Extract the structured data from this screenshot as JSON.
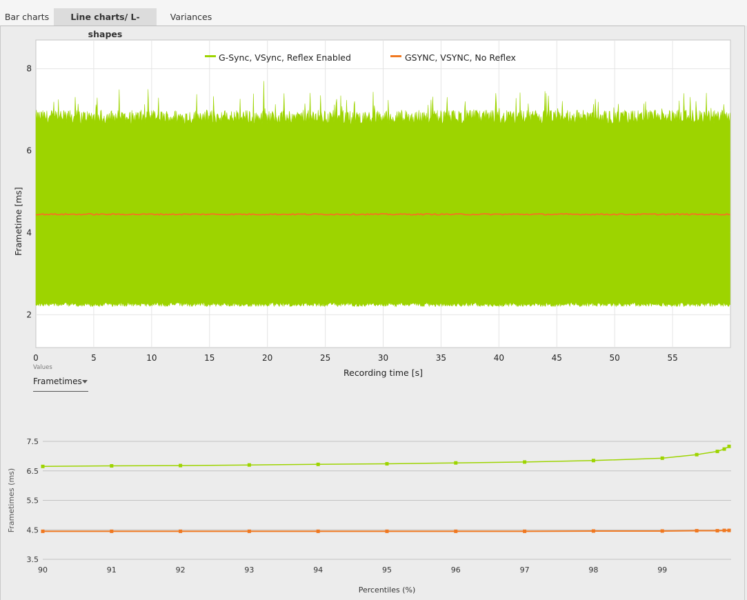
{
  "tabs": [
    {
      "label": "Bar charts"
    },
    {
      "label": "Line charts/ L-shapes"
    },
    {
      "label": "Variances"
    }
  ],
  "dropdown": {
    "label": "Values",
    "value": "Frametimes"
  },
  "colors": {
    "green": "#9dd400",
    "orange": "#f07820"
  },
  "chart_data": [
    {
      "type": "line",
      "title": "",
      "xlabel": "Recording time [s]",
      "ylabel": "Frametime [ms]",
      "xlim": [
        0,
        60
      ],
      "ylim": [
        1.2,
        8.7
      ],
      "xticks": [
        0,
        5,
        10,
        15,
        20,
        25,
        30,
        35,
        40,
        45,
        50,
        55
      ],
      "yticks": [
        2,
        4,
        6,
        8
      ],
      "grid": true,
      "legend": "top",
      "series": [
        {
          "name": "G-Sync, VSync, Reflex Enabled",
          "color": "#9dd400",
          "band_low": 2.3,
          "band_high": 6.75,
          "max": 7.7,
          "min": 2.15
        },
        {
          "name": "GSYNC, VSYNC, No Reflex",
          "color": "#f07820",
          "value": 4.45
        }
      ]
    },
    {
      "type": "line",
      "title": "",
      "xlabel": "Percentiles (%)",
      "ylabel": "Frametimes (ms)",
      "xlim": [
        90,
        100
      ],
      "ylim": [
        3.5,
        7.5
      ],
      "xticks": [
        90,
        91,
        92,
        93,
        94,
        95,
        96,
        97,
        98,
        99
      ],
      "yticks": [
        3.5,
        4.5,
        5.5,
        6.5,
        7.5
      ],
      "grid": true,
      "x": [
        90,
        91,
        92,
        93,
        94,
        95,
        96,
        97,
        98,
        99,
        99.5,
        99.8,
        99.9,
        99.97
      ],
      "series": [
        {
          "name": "G-Sync, VSync, Reflex Enabled",
          "color": "#9dd400",
          "values": [
            6.65,
            6.67,
            6.68,
            6.7,
            6.72,
            6.74,
            6.77,
            6.8,
            6.85,
            6.93,
            7.05,
            7.16,
            7.24,
            7.33
          ]
        },
        {
          "name": "GSYNC, VSYNC, No Reflex",
          "color": "#f07820",
          "values": [
            4.45,
            4.45,
            4.45,
            4.45,
            4.45,
            4.45,
            4.45,
            4.45,
            4.46,
            4.46,
            4.47,
            4.47,
            4.48,
            4.48
          ]
        }
      ]
    }
  ]
}
